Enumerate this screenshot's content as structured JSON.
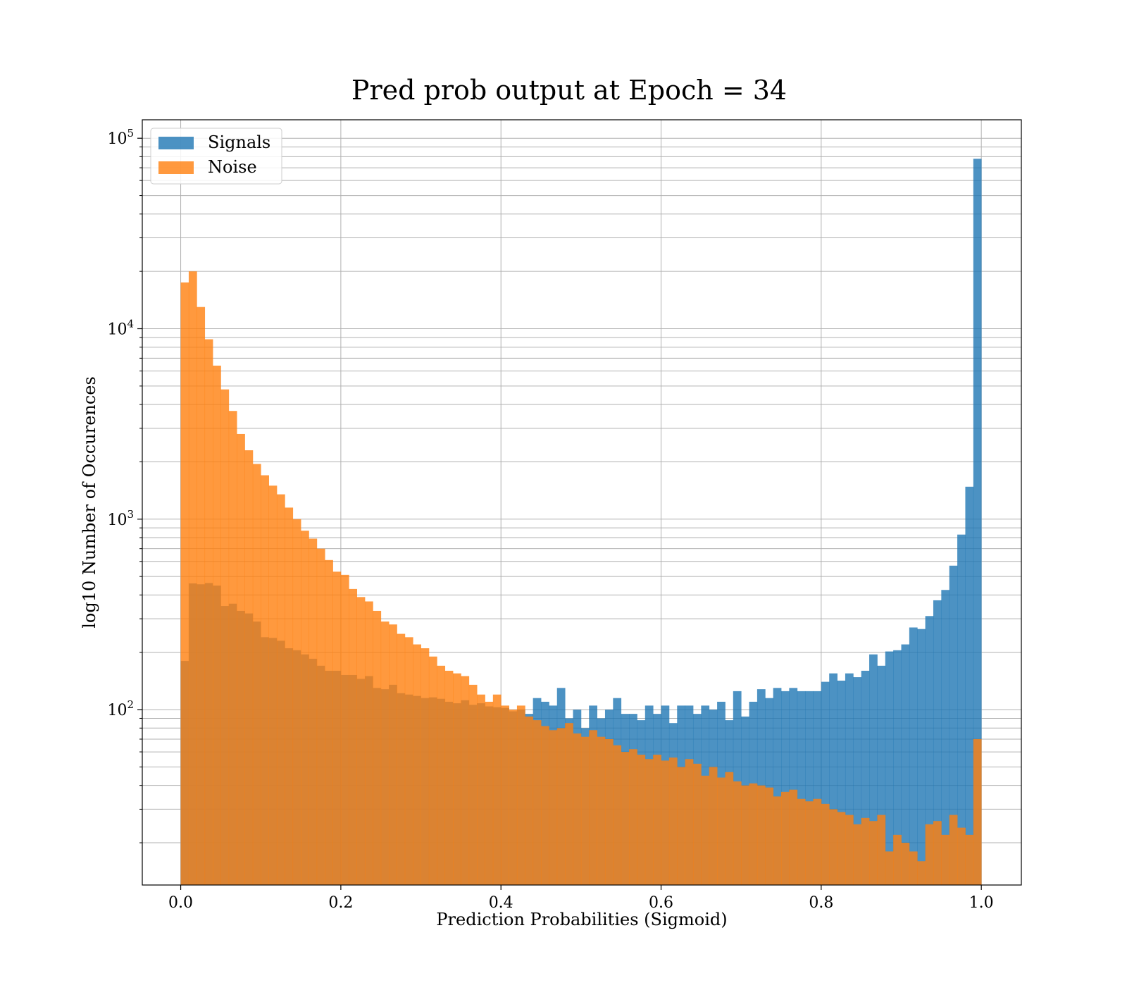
{
  "chart_data": {
    "type": "bar",
    "title": "Pred prob output at Epoch = 34",
    "xlabel": "Prediction Probabilities (Sigmoid)",
    "ylabel": "log10 Number of Occurences",
    "yscale": "log",
    "xlim": [
      -0.048,
      1.05
    ],
    "ylim": [
      12,
      125000
    ],
    "xticks": [
      0.0,
      0.2,
      0.4,
      0.6,
      0.8,
      1.0
    ],
    "xtick_labels": [
      "0.0",
      "0.2",
      "0.4",
      "0.6",
      "0.8",
      "1.0"
    ],
    "yticks": [
      {
        "value": 100,
        "base": "10",
        "exp": "2"
      },
      {
        "value": 1000,
        "base": "10",
        "exp": "3"
      },
      {
        "value": 10000,
        "base": "10",
        "exp": "4"
      },
      {
        "value": 100000,
        "base": "10",
        "exp": "5"
      }
    ],
    "grid": true,
    "legend_position": "top-left",
    "bins": {
      "start": 0.0,
      "end": 1.0,
      "count": 100
    },
    "series": [
      {
        "name": "Signals",
        "color": "#1f77b4",
        "alpha": 0.8,
        "values": [
          180,
          460,
          455,
          462,
          448,
          350,
          360,
          330,
          320,
          290,
          240,
          238,
          230,
          210,
          205,
          195,
          185,
          170,
          160,
          160,
          152,
          152,
          145,
          150,
          130,
          128,
          135,
          122,
          120,
          118,
          115,
          116,
          114,
          110,
          108,
          112,
          106,
          108,
          104,
          103,
          102,
          98,
          100,
          95,
          115,
          110,
          105,
          130,
          90,
          100,
          80,
          105,
          90,
          100,
          115,
          95,
          95,
          88,
          105,
          95,
          105,
          85,
          105,
          105,
          95,
          105,
          100,
          110,
          88,
          125,
          92,
          110,
          128,
          115,
          130,
          125,
          130,
          125,
          125,
          125,
          140,
          155,
          142,
          155,
          148,
          160,
          195,
          170,
          202,
          205,
          220,
          270,
          265,
          310,
          375,
          425,
          570,
          830,
          1480,
          78000
        ]
      },
      {
        "name": "Noise",
        "color": "#ff7f0e",
        "alpha": 0.8,
        "values": [
          17500,
          20000,
          13000,
          8800,
          6400,
          4800,
          3700,
          2800,
          2300,
          1950,
          1700,
          1500,
          1350,
          1150,
          1000,
          870,
          790,
          700,
          610,
          530,
          510,
          430,
          390,
          370,
          330,
          290,
          280,
          250,
          240,
          220,
          210,
          190,
          170,
          160,
          155,
          150,
          135,
          120,
          110,
          120,
          105,
          100,
          105,
          92,
          88,
          82,
          78,
          80,
          85,
          75,
          72,
          78,
          72,
          70,
          65,
          60,
          62,
          58,
          55,
          58,
          54,
          56,
          50,
          55,
          52,
          45,
          50,
          44,
          47,
          42,
          40,
          41,
          40,
          39,
          35,
          37,
          38,
          34,
          33,
          34,
          32,
          30,
          29,
          28,
          25,
          27,
          26,
          28,
          18,
          22,
          20,
          18,
          16,
          25,
          26,
          22,
          28,
          24,
          22,
          70
        ]
      }
    ]
  }
}
